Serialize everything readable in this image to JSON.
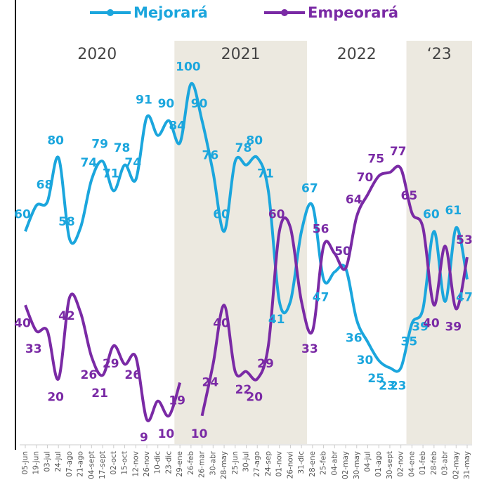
{
  "chart_data": {
    "type": "line",
    "categories": [
      "05-jun",
      "19-jun",
      "03-jul",
      "24-jul",
      "07-ago",
      "21-ago",
      "04-sept",
      "17-sept",
      "02-oct",
      "15-oct",
      "12-nov",
      "26-nov",
      "10-dic",
      "23-dic",
      "29-ene",
      "26-feb",
      "26-mar",
      "30-abr",
      "28-may",
      "25-jun",
      "30-jul",
      "27-ago",
      "24-sep",
      "01-nov",
      "26-novi",
      "31-dic",
      "28-ene",
      "25-feb",
      "04-abr",
      "02-may",
      "30-may",
      "04-jul",
      "01-ago",
      "30-sept",
      "02-nov",
      "04-ene",
      "01-feb",
      "28-feb",
      "03-abr",
      "02-may",
      "31-may"
    ],
    "series": [
      {
        "name": "Mejorará",
        "color": "#1ba6dd",
        "values": [
          60,
          67,
          68,
          80,
          58,
          61,
          74,
          79,
          71,
          78,
          74,
          91,
          86,
          90,
          84,
          100,
          90,
          76,
          60,
          79,
          78,
          80,
          71,
          41,
          41,
          60,
          67,
          47,
          49,
          50,
          36,
          30,
          25,
          23,
          23,
          35,
          39,
          60,
          41,
          61,
          47
        ],
        "value_labels": [
          "60",
          null,
          "68",
          "80",
          "58",
          null,
          "74",
          "79",
          "71",
          "78",
          "74",
          "91",
          null,
          "90",
          "84",
          "100",
          "90",
          "76",
          "60",
          null,
          "78",
          "80",
          "71",
          "41",
          null,
          null,
          "67",
          "47",
          null,
          "50",
          "36",
          "30",
          "25",
          "23",
          "23",
          "35",
          "39",
          "60",
          null,
          "61",
          "47"
        ]
      },
      {
        "name": "Empeorará",
        "color": "#7a2aa5",
        "values": [
          40,
          33,
          33,
          20,
          42,
          38,
          26,
          21,
          29,
          24,
          26,
          9,
          14,
          10,
          19,
          null,
          10,
          24,
          40,
          22,
          22,
          20,
          29,
          60,
          61,
          41,
          33,
          56,
          54,
          50,
          64,
          70,
          75,
          76,
          77,
          65,
          61,
          40,
          56,
          39,
          53
        ],
        "value_labels": [
          "40",
          "33",
          null,
          "20",
          "42",
          null,
          "26",
          "21",
          "29",
          null,
          "26",
          "9",
          null,
          "10",
          "19",
          null,
          "10",
          "24",
          "40",
          null,
          "22",
          "20",
          "29",
          "60",
          null,
          null,
          "33",
          "56",
          null,
          "50",
          "64",
          "70",
          "75",
          null,
          "77",
          "65",
          null,
          "40",
          null,
          "39",
          "53"
        ]
      }
    ],
    "periods": [
      {
        "label": "2020",
        "start": 0,
        "end": 13,
        "shaded": false
      },
      {
        "label": "2021",
        "start": 14,
        "end": 25,
        "shaded": true
      },
      {
        "label": "2022",
        "start": 26,
        "end": 34,
        "shaded": false
      },
      {
        "label": "‘23",
        "start": 35,
        "end": 40,
        "shaded": true
      }
    ],
    "ylim": [
      5,
      105
    ],
    "legend": "top"
  }
}
